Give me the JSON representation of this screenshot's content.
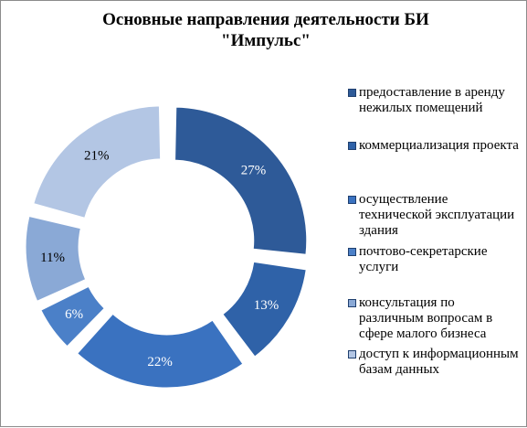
{
  "chart_data": {
    "type": "pie",
    "variant": "exploded-donut",
    "title_lines": [
      "Основные направления деятельности БИ",
      "\"Импульс\""
    ],
    "slices": [
      {
        "name": "предоставление в аренду нежилых помещений",
        "value": 27,
        "label": "27%",
        "color": "#2e5a98"
      },
      {
        "name": "коммерциализация проекта",
        "value": 13,
        "label": "13%",
        "color": "#2f62a8"
      },
      {
        "name": "осуществление технической эксплуатации здания",
        "value": 22,
        "label": "22%",
        "color": "#3a72c0"
      },
      {
        "name": "почтово-секретарские услуги",
        "value": 6,
        "label": "6%",
        "color": "#4b80c8"
      },
      {
        "name": "консультация по различным вопросам в сфере малого бизнеса",
        "value": 11,
        "label": "11%",
        "color": "#8aa9d6"
      },
      {
        "name": "доступ к информационным базам данных",
        "value": 21,
        "label": "21%",
        "color": "#b3c6e4"
      }
    ],
    "legend_position": "right",
    "legend_swatch_colors": [
      "#2e5a98",
      "#2f62a8",
      "#3a72c0",
      "#4b80c8",
      "#8aa9d6",
      "#b3c6e4"
    ]
  }
}
